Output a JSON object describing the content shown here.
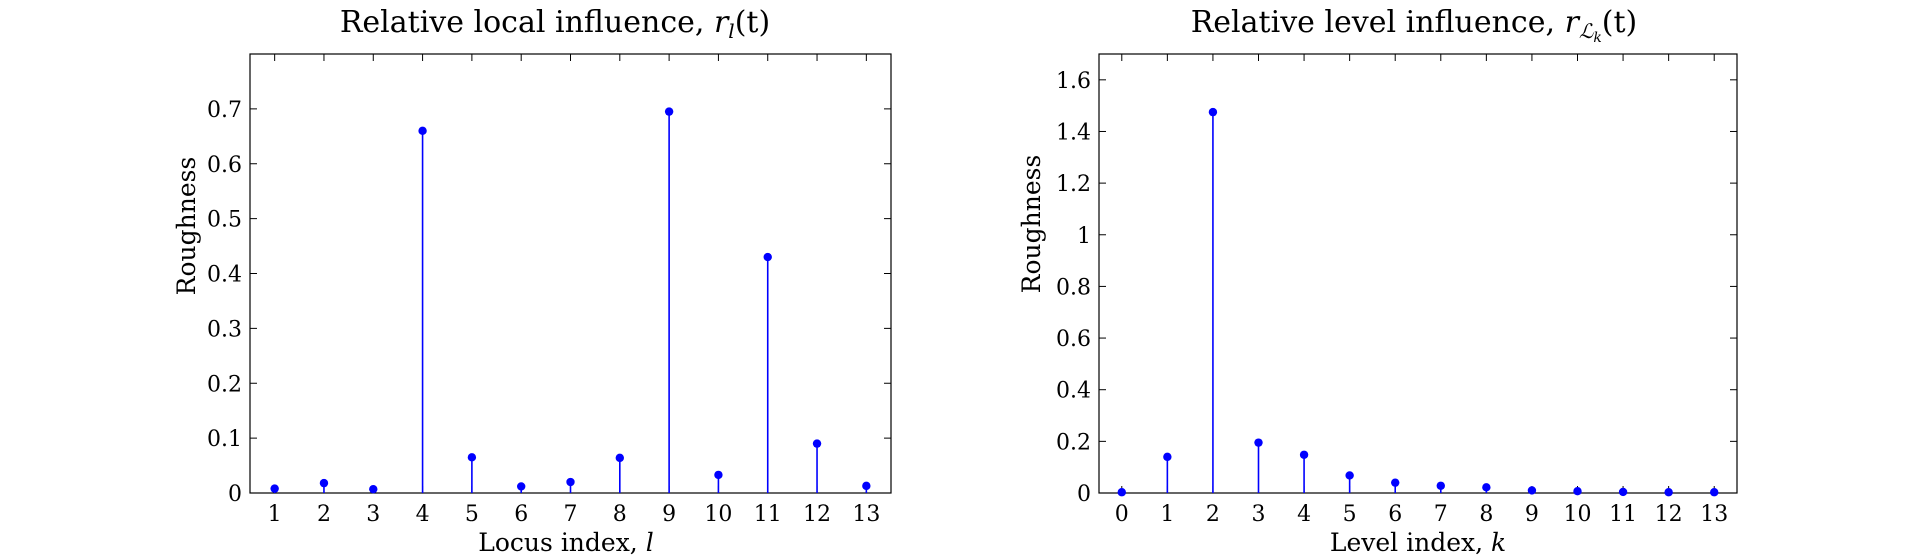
{
  "chart_data": [
    {
      "type": "stem",
      "title": "Relative local influence, r_l(t)",
      "title_main": "Relative local influence, ",
      "title_math": "r",
      "title_sub": "l",
      "title_tail": "(t)",
      "xlabel_main": "Locus index, ",
      "xlabel_math": "l",
      "ylabel": "Roughness",
      "x": [
        1,
        2,
        3,
        4,
        5,
        6,
        7,
        8,
        9,
        10,
        11,
        12,
        13
      ],
      "values": [
        0.008,
        0.018,
        0.007,
        0.66,
        0.065,
        0.012,
        0.02,
        0.064,
        0.695,
        0.033,
        0.43,
        0.09,
        0.013
      ],
      "xlim": [
        0.5,
        13.5
      ],
      "ylim": [
        0,
        0.8
      ],
      "xticks": [
        "1",
        "2",
        "3",
        "4",
        "5",
        "6",
        "7",
        "8",
        "9",
        "10",
        "11",
        "12",
        "13"
      ],
      "yticks": [
        "0",
        "0.1",
        "0.2",
        "0.3",
        "0.4",
        "0.5",
        "0.6",
        "0.7"
      ],
      "ytick_values": [
        0,
        0.1,
        0.2,
        0.3,
        0.4,
        0.5,
        0.6,
        0.7
      ],
      "color": "#0000ff",
      "grid": false
    },
    {
      "type": "stem",
      "title": "Relative level influence, r_{L_k}(t)",
      "title_main": "Relative level influence, ",
      "title_math": "r",
      "title_sub": "ℒ",
      "title_subsub": "k",
      "title_tail": "(t)",
      "xlabel_main": "Level index, ",
      "xlabel_math": "k",
      "ylabel": "Roughness",
      "x": [
        0,
        1,
        2,
        3,
        4,
        5,
        6,
        7,
        8,
        9,
        10,
        11,
        12,
        13
      ],
      "values": [
        0.003,
        0.14,
        1.475,
        0.195,
        0.148,
        0.068,
        0.04,
        0.028,
        0.022,
        0.01,
        0.007,
        0.004,
        0.003,
        0.003
      ],
      "xlim": [
        -0.5,
        13.5
      ],
      "ylim": [
        0,
        1.7
      ],
      "xticks": [
        "0",
        "1",
        "2",
        "3",
        "4",
        "5",
        "6",
        "7",
        "8",
        "9",
        "10",
        "11",
        "12",
        "13"
      ],
      "yticks": [
        "0",
        "0.2",
        "0.4",
        "0.6",
        "0.8",
        "1",
        "1.2",
        "1.4",
        "1.6"
      ],
      "ytick_values": [
        0,
        0.2,
        0.4,
        0.6,
        0.8,
        1,
        1.2,
        1.4,
        1.6
      ],
      "color": "#0000ff",
      "grid": false
    }
  ]
}
